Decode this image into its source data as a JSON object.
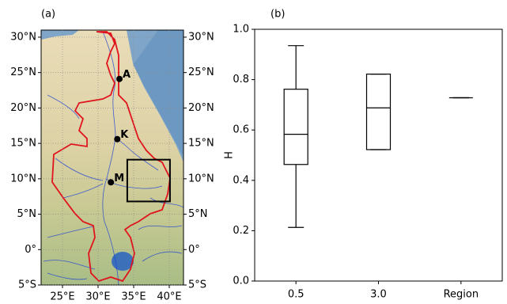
{
  "chart_data": [
    {
      "type": "map",
      "label": "(a)",
      "xlim": [
        22,
        42
      ],
      "ylim": [
        -5,
        31
      ],
      "xticks": [
        {
          "value": 25,
          "label": "25°E"
        },
        {
          "value": 30,
          "label": "30°E"
        },
        {
          "value": 35,
          "label": "35°E"
        },
        {
          "value": 40,
          "label": "40°E"
        }
      ],
      "yticks": [
        {
          "value": -5,
          "label": "5°S"
        },
        {
          "value": 0,
          "label": "0°"
        },
        {
          "value": 5,
          "label": "5°N"
        },
        {
          "value": 10,
          "label": "10°N"
        },
        {
          "value": 15,
          "label": "15°N"
        },
        {
          "value": 20,
          "label": "20°N"
        },
        {
          "value": 25,
          "label": "25°N"
        },
        {
          "value": 30,
          "label": "30°N"
        }
      ],
      "grid": true,
      "points": {
        "labels": [
          "A",
          "K",
          "M"
        ],
        "x": [
          33.0,
          32.7,
          31.8
        ],
        "y": [
          24.1,
          15.6,
          9.5
        ],
        "color": "#000000"
      },
      "box_lon": [
        34.1,
        40.1
      ],
      "box_lat": [
        6.8,
        12.7
      ]
    },
    {
      "type": "box",
      "label": "(b)",
      "ylabel": "H",
      "categories": [
        "0.5",
        "3.0",
        "Region"
      ],
      "stats": {
        "whislo": [
          0.213,
          0.522,
          0.728
        ],
        "q1": [
          0.463,
          0.522,
          0.728
        ],
        "med": [
          0.583,
          0.688,
          0.728
        ],
        "q3": [
          0.762,
          0.822,
          0.728
        ],
        "whishi": [
          0.935,
          0.822,
          0.728
        ]
      },
      "ylim": [
        0,
        1
      ],
      "yticks": [
        {
          "value": 0,
          "label": "0.0"
        },
        0.2,
        0.4,
        0.6,
        0.8,
        {
          "value": 1,
          "label": "1.0"
        }
      ]
    }
  ]
}
